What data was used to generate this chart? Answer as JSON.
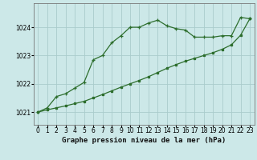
{
  "title": "Graphe pression niveau de la mer (hPa)",
  "bg_color": "#cce8e8",
  "grid_color": "#aacccc",
  "line_color": "#2d6e2d",
  "xmin": -0.5,
  "xmax": 23.5,
  "ymin": 1020.55,
  "ymax": 1024.85,
  "yticks": [
    1021,
    1022,
    1023,
    1024
  ],
  "xticks": [
    0,
    1,
    2,
    3,
    4,
    5,
    6,
    7,
    8,
    9,
    10,
    11,
    12,
    13,
    14,
    15,
    16,
    17,
    18,
    19,
    20,
    21,
    22,
    23
  ],
  "series1_x": [
    0,
    1,
    2,
    3,
    4,
    5,
    6,
    7,
    8,
    9,
    10,
    11,
    12,
    13,
    14,
    15,
    16,
    17,
    18,
    19,
    20,
    21,
    22,
    23
  ],
  "series1_y": [
    1021.0,
    1021.15,
    1021.55,
    1021.65,
    1021.85,
    1022.05,
    1022.85,
    1023.0,
    1023.45,
    1023.7,
    1024.0,
    1024.0,
    1024.15,
    1024.25,
    1024.05,
    1023.95,
    1023.9,
    1023.65,
    1023.65,
    1023.65,
    1023.7,
    1023.7,
    1024.35,
    1024.3
  ],
  "series2_x": [
    0,
    1,
    2,
    3,
    4,
    5,
    6,
    7,
    8,
    9,
    10,
    11,
    12,
    13,
    14,
    15,
    16,
    17,
    18,
    19,
    20,
    21,
    22,
    23
  ],
  "series2_y": [
    1021.0,
    1021.08,
    1021.15,
    1021.22,
    1021.3,
    1021.38,
    1021.5,
    1021.62,
    1021.75,
    1021.88,
    1022.0,
    1022.12,
    1022.25,
    1022.4,
    1022.55,
    1022.68,
    1022.8,
    1022.9,
    1023.0,
    1023.1,
    1023.22,
    1023.38,
    1023.72,
    1024.3
  ],
  "title_fontsize": 6.5,
  "tick_fontsize": 5.5
}
